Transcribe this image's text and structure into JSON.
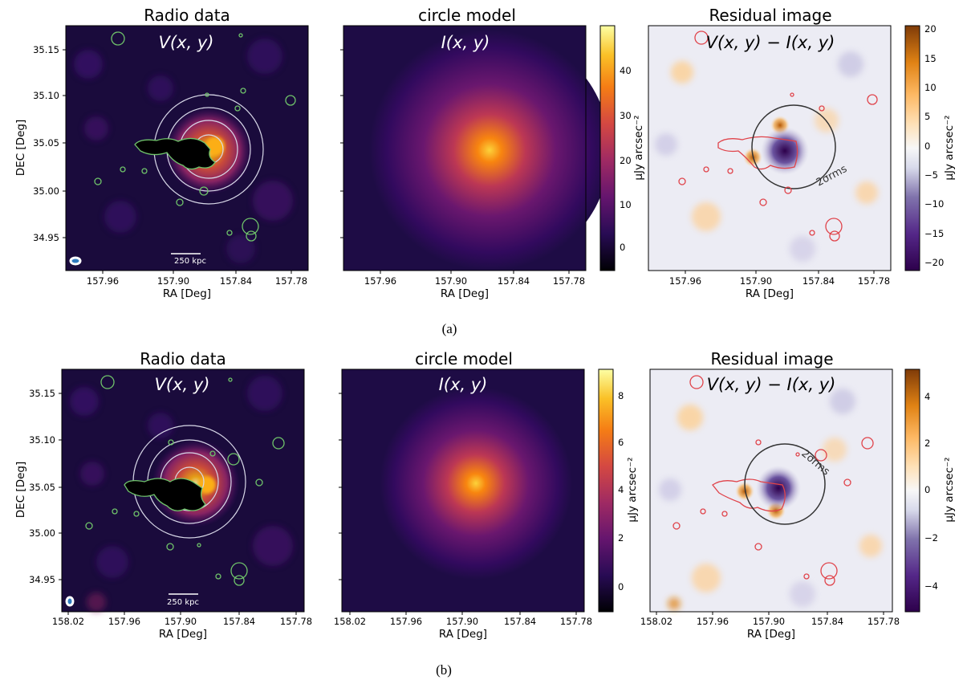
{
  "chart_data": [
    {
      "type": "heatmap",
      "panel": "a",
      "caption": "(a)",
      "plots": [
        {
          "title": "Radio data",
          "formula": "V(x, y)",
          "xlabel": "RA [Deg]",
          "ylabel": "DEC [Deg]",
          "xticks": [
            "157.96",
            "157.90",
            "157.84",
            "157.78"
          ],
          "yticks": [
            "35.15",
            "35.10",
            "35.05",
            "35.00",
            "34.95"
          ],
          "scalebar": "250 kpc"
        },
        {
          "title": "circle model",
          "formula": "I(x, y)",
          "xlabel": "RA [Deg]",
          "xticks": [
            "157.96",
            "157.90",
            "157.84",
            "157.78"
          ],
          "colorbar": {
            "label": "μJy arcsec⁻²",
            "ticks": [
              "40",
              "30",
              "20",
              "10",
              "0"
            ],
            "range": [
              -5,
              49
            ]
          }
        },
        {
          "title": "Residual image",
          "formula": "V(x, y) − I(x, y)",
          "xlabel": "RA [Deg]",
          "xticks": [
            "157.96",
            "157.90",
            "157.84",
            "157.78"
          ],
          "annotation": "2σrms",
          "colorbar": {
            "label": "μJy arcsec⁻²",
            "ticks": [
              "20",
              "15",
              "10",
              "5",
              "0",
              "−5",
              "−10",
              "−15",
              "−20"
            ],
            "range": [
              -21,
              21
            ]
          }
        }
      ]
    },
    {
      "type": "heatmap",
      "panel": "b",
      "caption": "(b)",
      "plots": [
        {
          "title": "Radio data",
          "formula": "V(x, y)",
          "xlabel": "RA [Deg]",
          "ylabel": "DEC [Deg]",
          "xticks": [
            "158.02",
            "157.96",
            "157.90",
            "157.84",
            "157.78"
          ],
          "yticks": [
            "35.15",
            "35.10",
            "35.05",
            "35.00",
            "34.95"
          ],
          "scalebar": "250 kpc"
        },
        {
          "title": "circle model",
          "formula": "I(x, y)",
          "xlabel": "RA [Deg]",
          "xticks": [
            "158.02",
            "157.96",
            "157.90",
            "157.84",
            "157.78"
          ],
          "colorbar": {
            "label": "μJy arcsec⁻²",
            "ticks": [
              "8",
              "6",
              "4",
              "2",
              "0"
            ],
            "range": [
              -1,
              9.2
            ]
          }
        },
        {
          "title": "Residual image",
          "formula": "V(x, y) − I(x, y)",
          "xlabel": "RA [Deg]",
          "xticks": [
            "158.02",
            "157.96",
            "157.90",
            "157.84",
            "157.78"
          ],
          "annotation": "2σrms",
          "colorbar": {
            "label": "μJy arcsec⁻²",
            "ticks": [
              "4",
              "2",
              "0",
              "−2",
              "−4"
            ],
            "range": [
              -5,
              5
            ]
          }
        }
      ]
    }
  ],
  "colors": {
    "inferno_dark": "#140b34",
    "inferno_bright": "#fcae12",
    "contour_green": "#6fc36a",
    "contour_red": "#e0434a",
    "residual_orange": "#b35806",
    "residual_purple": "#2d004b"
  }
}
